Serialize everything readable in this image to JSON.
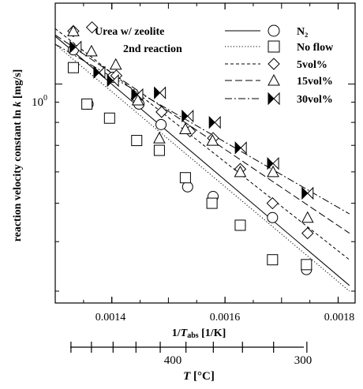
{
  "chart_data": {
    "type": "scatter",
    "annotation_lines": [
      "Urea w/ zeolite",
      "2nd reaction"
    ],
    "xlabel_prefix": "1/",
    "xlabel_var": "T",
    "xlabel_sub": "abs",
    "xlabel_unit": " [1/K]",
    "ylabel_prefix": "reaction velocity constant ln ",
    "ylabel_var": "k",
    "ylabel_unit": " [mg/s]",
    "x_scale": "linear",
    "y_scale": "log",
    "xlim": [
      0.0013,
      0.00183
    ],
    "ylim": [
      0.28,
      1.6
    ],
    "x_ticks": [
      0.0014,
      0.0016,
      0.0018
    ],
    "x_tick_labels": [
      "0.0014",
      "0.0016",
      "0.0018"
    ],
    "y_ticks": [
      1.0
    ],
    "y_tick_labels": [
      "10",
      "0"
    ],
    "legend_position": "top-right",
    "series": [
      {
        "name": "N₂",
        "marker": "circle",
        "line_style": "solid",
        "points": [
          [
            0.001332,
            1.22
          ],
          [
            0.001358,
            0.89
          ],
          [
            0.001402,
            1.04
          ],
          [
            0.001448,
            0.89
          ],
          [
            0.001487,
            0.79
          ],
          [
            0.001534,
            0.55
          ],
          [
            0.001579,
            0.52
          ],
          [
            0.001627,
            0.44
          ],
          [
            0.001684,
            0.46
          ],
          [
            0.001744,
            0.34
          ]
        ],
        "fit": [
          [
            0.0013,
            1.32
          ],
          [
            0.00182,
            0.31
          ]
        ]
      },
      {
        "name": "No flow",
        "marker": "square",
        "line_style": "dotted",
        "points": [
          [
            0.001332,
            1.1
          ],
          [
            0.001356,
            0.89
          ],
          [
            0.001396,
            0.82
          ],
          [
            0.001444,
            0.72
          ],
          [
            0.001484,
            0.68
          ],
          [
            0.00153,
            0.58
          ],
          [
            0.001577,
            0.5
          ],
          [
            0.001627,
            0.44
          ],
          [
            0.001684,
            0.36
          ],
          [
            0.001744,
            0.35
          ]
        ],
        "fit": [
          [
            0.0013,
            1.26
          ],
          [
            0.00182,
            0.3
          ]
        ]
      },
      {
        "name": "5vol%",
        "marker": "diamond",
        "line_style": "dashed",
        "points": [
          [
            0.001332,
            1.36
          ],
          [
            0.001365,
            1.39
          ],
          [
            0.001408,
            1.05
          ],
          [
            0.001444,
            0.92
          ],
          [
            0.001488,
            0.85
          ],
          [
            0.001538,
            0.76
          ],
          [
            0.001579,
            0.73
          ],
          [
            0.001627,
            0.61
          ],
          [
            0.001684,
            0.5
          ],
          [
            0.001746,
            0.42
          ]
        ],
        "fit": [
          [
            0.0013,
            1.38
          ],
          [
            0.00182,
            0.36
          ]
        ]
      },
      {
        "name": "15vol%",
        "marker": "triangle",
        "line_style": "long-dashed",
        "points": [
          [
            0.001332,
            1.36
          ],
          [
            0.001364,
            1.21
          ],
          [
            0.001407,
            1.12
          ],
          [
            0.001446,
            0.91
          ],
          [
            0.001484,
            0.73
          ],
          [
            0.00153,
            0.77
          ],
          [
            0.001578,
            0.72
          ],
          [
            0.001627,
            0.6
          ],
          [
            0.001685,
            0.6
          ],
          [
            0.001746,
            0.46
          ]
        ],
        "fit": [
          [
            0.0013,
            1.33
          ],
          [
            0.00182,
            0.42
          ]
        ]
      },
      {
        "name": "30vol%",
        "marker": "bowtie",
        "line_style": "dash-dot",
        "points": [
          [
            0.001336,
            1.24
          ],
          [
            0.001378,
            1.07
          ],
          [
            0.001402,
            1.02
          ],
          [
            0.001445,
            0.94
          ],
          [
            0.001485,
            0.95
          ],
          [
            0.001534,
            0.83
          ],
          [
            0.001582,
            0.8
          ],
          [
            0.001628,
            0.69
          ],
          [
            0.001685,
            0.63
          ],
          [
            0.001746,
            0.53
          ]
        ],
        "fit": [
          [
            0.0013,
            1.26
          ],
          [
            0.00182,
            0.47
          ]
        ]
      }
    ],
    "temperature_axis": {
      "label_var": "T",
      "label_unit": " [°C]",
      "labeled_ticks": [
        400,
        300
      ],
      "tick_values_C": [
        480,
        460,
        440,
        420,
        400,
        380,
        360,
        340,
        320,
        300
      ]
    }
  }
}
